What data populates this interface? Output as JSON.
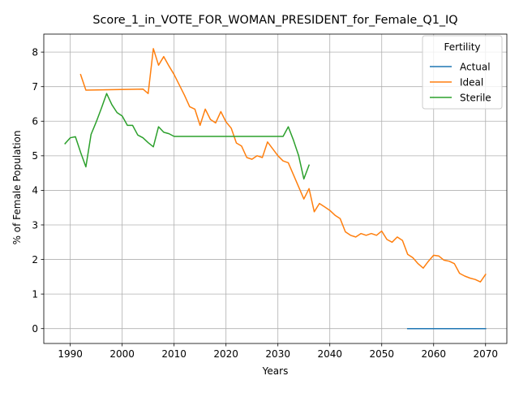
{
  "chart_data": {
    "type": "line",
    "title": "Score_1_in_VOTE_FOR_WOMAN_PRESIDENT_for_Female_Q1_IQ",
    "xlabel": "Years",
    "ylabel": "% of Female Population",
    "xlim": [
      1984.9,
      2074.1
    ],
    "ylim": [
      -0.43,
      8.52
    ],
    "x_ticks": [
      1990,
      2000,
      2010,
      2020,
      2030,
      2040,
      2050,
      2060,
      2070
    ],
    "y_ticks": [
      0,
      1,
      2,
      3,
      4,
      5,
      6,
      7,
      8
    ],
    "grid": true,
    "legend": {
      "title": "Fertility",
      "position": "top-right"
    },
    "series": [
      {
        "name": "Actual",
        "color": "#1f77b4",
        "x": [
          2055,
          2060,
          2065,
          2070
        ],
        "y": [
          0.0,
          0.0,
          0.0,
          0.0
        ]
      },
      {
        "name": "Ideal",
        "color": "#ff7f0e",
        "x": [
          1992,
          1993,
          2004,
          2005,
          2006,
          2007,
          2008,
          2009,
          2010,
          2011,
          2012,
          2013,
          2014,
          2015,
          2016,
          2017,
          2018,
          2019,
          2020,
          2021,
          2022,
          2023,
          2024,
          2025,
          2026,
          2027,
          2028,
          2029,
          2030,
          2031,
          2032,
          2033,
          2034,
          2035,
          2036,
          2037,
          2038,
          2039,
          2040,
          2041,
          2042,
          2043,
          2044,
          2045,
          2046,
          2047,
          2048,
          2049,
          2050,
          2051,
          2052,
          2053,
          2054,
          2055,
          2056,
          2057,
          2058,
          2059,
          2060,
          2061,
          2062,
          2063,
          2064,
          2065,
          2066,
          2067,
          2068,
          2069,
          2070
        ],
        "y": [
          7.35,
          6.9,
          6.93,
          6.8,
          8.1,
          7.62,
          7.87,
          7.6,
          7.35,
          7.05,
          6.75,
          6.42,
          6.35,
          5.88,
          6.35,
          6.05,
          5.95,
          6.28,
          5.98,
          5.8,
          5.37,
          5.28,
          4.95,
          4.9,
          5.0,
          4.95,
          5.4,
          5.2,
          5.0,
          4.85,
          4.8,
          4.45,
          4.1,
          3.75,
          4.05,
          3.38,
          3.62,
          3.52,
          3.42,
          3.28,
          3.18,
          2.8,
          2.7,
          2.65,
          2.75,
          2.7,
          2.75,
          2.7,
          2.82,
          2.58,
          2.5,
          2.65,
          2.55,
          2.15,
          2.05,
          1.88,
          1.75,
          1.95,
          2.12,
          2.1,
          1.98,
          1.95,
          1.88,
          1.6,
          1.52,
          1.46,
          1.42,
          1.35,
          1.57
        ]
      },
      {
        "name": "Sterile",
        "color": "#2ca02c",
        "x": [
          1989,
          1990,
          1991,
          1992,
          1993,
          1994,
          1995,
          1996,
          1997,
          1998,
          1999,
          2000,
          2001,
          2002,
          2003,
          2004,
          2005,
          2006,
          2007,
          2008,
          2009,
          2010,
          2015,
          2020,
          2025,
          2031,
          2032,
          2033,
          2034,
          2035,
          2036
        ],
        "y": [
          5.35,
          5.52,
          5.55,
          5.1,
          4.68,
          5.62,
          5.98,
          6.38,
          6.8,
          6.48,
          6.25,
          6.15,
          5.88,
          5.88,
          5.6,
          5.52,
          5.38,
          5.26,
          5.84,
          5.68,
          5.64,
          5.56,
          5.56,
          5.56,
          5.56,
          5.56,
          5.84,
          5.45,
          5.0,
          4.33,
          4.73
        ]
      }
    ]
  }
}
